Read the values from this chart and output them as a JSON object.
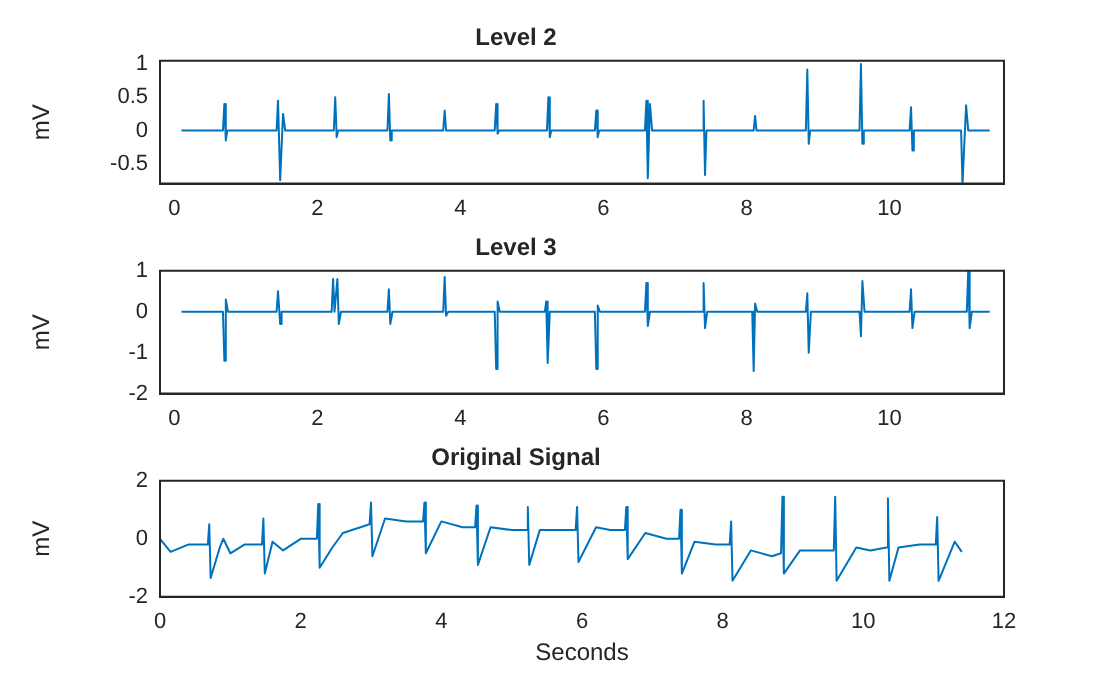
{
  "chart_data": [
    {
      "type": "line",
      "title": "Level 2",
      "ylabel": "mV",
      "xlim": [
        -0.2,
        11.6
      ],
      "xticks": [
        0,
        2,
        4,
        6,
        8,
        10
      ],
      "ylim": [
        -0.8,
        1.05
      ],
      "yticks": [
        -0.5,
        0,
        0.5,
        1
      ],
      "grid": false,
      "legend": false,
      "marker": "none",
      "line_style": "solid",
      "series": [
        {
          "color": "#0072bd",
          "x": [
            0.1,
            0.5,
            0.68,
            0.7,
            0.72,
            0.74,
            0.9,
            1.2,
            1.43,
            1.45,
            1.48,
            1.52,
            1.55,
            2.0,
            2.23,
            2.25,
            2.27,
            2.29,
            2.7,
            2.98,
            3.0,
            3.02,
            3.04,
            3.3,
            3.76,
            3.78,
            3.8,
            4.2,
            4.48,
            4.5,
            4.52,
            4.54,
            5.0,
            5.21,
            5.23,
            5.25,
            5.27,
            5.88,
            5.9,
            5.92,
            5.94,
            6.58,
            6.6,
            6.62,
            6.65,
            6.68,
            7.38,
            7.4,
            7.42,
            7.44,
            8.1,
            8.12,
            8.14,
            8.83,
            8.85,
            8.87,
            8.89,
            9.58,
            9.6,
            9.62,
            9.64,
            10.28,
            10.3,
            10.32,
            10.34,
            11.0,
            11.02,
            11.07,
            11.1,
            11.4
          ],
          "values": [
            0,
            0,
            0,
            0.4,
            -0.15,
            0,
            0,
            0,
            0,
            0.45,
            -0.75,
            0.25,
            0,
            0,
            0,
            0.5,
            -0.1,
            0,
            0,
            0,
            0.55,
            -0.15,
            0,
            0,
            0,
            0.3,
            0,
            0,
            0,
            0.4,
            -0.05,
            0,
            0,
            0,
            0.5,
            -0.1,
            0,
            0,
            0.3,
            -0.1,
            0,
            0,
            0.45,
            -0.72,
            0.4,
            0,
            0,
            0.45,
            -0.67,
            0,
            0,
            0.22,
            0,
            0,
            0.92,
            -0.2,
            0,
            0,
            1,
            -0.2,
            0,
            0,
            0.35,
            -0.3,
            0,
            0,
            -0.8,
            0.38,
            0,
            0
          ]
        }
      ]
    },
    {
      "type": "line",
      "title": "Level 3",
      "ylabel": "mV",
      "xlim": [
        -0.2,
        11.6
      ],
      "xticks": [
        0,
        2,
        4,
        6,
        8,
        10
      ],
      "ylim": [
        -2,
        1
      ],
      "yticks": [
        -2,
        -1,
        0,
        1
      ],
      "grid": false,
      "legend": false,
      "marker": "none",
      "line_style": "solid",
      "series": [
        {
          "color": "#0072bd",
          "x": [
            0.1,
            0.68,
            0.7,
            0.72,
            0.75,
            1.43,
            1.45,
            1.48,
            1.5,
            2.2,
            2.22,
            2.24,
            2.28,
            2.3,
            2.33,
            2.98,
            3.0,
            3.02,
            3.05,
            3.76,
            3.78,
            3.8,
            3.83,
            4.48,
            4.5,
            4.52,
            4.55,
            5.18,
            5.2,
            5.22,
            5.25,
            5.88,
            5.9,
            5.92,
            5.95,
            6.58,
            6.6,
            6.62,
            6.65,
            7.38,
            7.4,
            7.42,
            7.45,
            8.08,
            8.1,
            8.12,
            8.15,
            8.83,
            8.85,
            8.87,
            8.9,
            9.58,
            9.6,
            9.62,
            9.65,
            10.28,
            10.3,
            10.32,
            10.35,
            11.08,
            11.1,
            11.12,
            11.15,
            11.4
          ],
          "values": [
            0,
            0,
            -1.2,
            0.3,
            0,
            0,
            0.5,
            -0.3,
            0,
            0,
            0.8,
            0,
            0.8,
            -0.3,
            0,
            0,
            0.55,
            -0.3,
            0,
            0,
            0.85,
            -0.1,
            0,
            0,
            -1.4,
            0.25,
            0,
            0,
            0.25,
            -1.25,
            0,
            0,
            -1.4,
            0.15,
            0,
            0,
            0.7,
            -0.35,
            0,
            0,
            0.7,
            -0.4,
            0,
            0,
            -1.45,
            0.2,
            0,
            0,
            0.45,
            -1,
            0,
            0,
            -0.6,
            0.75,
            0,
            0,
            0.55,
            -0.4,
            0,
            0,
            1,
            -0.4,
            0,
            0
          ]
        }
      ]
    },
    {
      "type": "line",
      "title": "Original Signal",
      "xlabel": "Seconds",
      "ylabel": "mV",
      "xlim": [
        0,
        12
      ],
      "xticks": [
        0,
        2,
        4,
        6,
        8,
        10,
        12
      ],
      "ylim": [
        -2,
        2
      ],
      "yticks": [
        -2,
        0,
        2
      ],
      "grid": false,
      "legend": false,
      "marker": "none",
      "line_style": "solid",
      "series": [
        {
          "color": "#0072bd",
          "x": [
            0,
            0.15,
            0.4,
            0.68,
            0.7,
            0.72,
            0.85,
            0.9,
            1.0,
            1.2,
            1.45,
            1.47,
            1.49,
            1.6,
            1.75,
            2.0,
            2.23,
            2.25,
            2.27,
            2.45,
            2.6,
            2.98,
            3.0,
            3.02,
            3.2,
            3.5,
            3.74,
            3.76,
            3.78,
            4.0,
            4.3,
            4.48,
            4.5,
            4.52,
            4.7,
            5.0,
            5.21,
            5.23,
            5.25,
            5.4,
            5.6,
            5.91,
            5.93,
            5.95,
            6.2,
            6.4,
            6.61,
            6.63,
            6.65,
            6.9,
            7.2,
            7.38,
            7.4,
            7.42,
            7.6,
            7.9,
            8.1,
            8.12,
            8.14,
            8.4,
            8.7,
            8.83,
            8.85,
            8.87,
            9.1,
            9.4,
            9.58,
            9.6,
            9.62,
            9.9,
            10.1,
            10.33,
            10.35,
            10.37,
            10.5,
            10.8,
            11.03,
            11.05,
            11.07,
            11.3,
            11.4
          ],
          "values": [
            0,
            -0.45,
            -0.2,
            -0.2,
            0.5,
            -1.35,
            -0.3,
            0,
            -0.5,
            -0.2,
            -0.2,
            0.7,
            -1.2,
            -0.1,
            -0.4,
            0,
            0,
            1.2,
            -1,
            -0.3,
            0.2,
            0.5,
            1.25,
            -0.6,
            0.7,
            0.6,
            0.6,
            1.25,
            -0.5,
            0.6,
            0.4,
            0.4,
            1.15,
            -0.9,
            0.4,
            0.3,
            0.3,
            1.1,
            -0.9,
            0.3,
            0.3,
            0.3,
            1.1,
            -0.8,
            0.4,
            0.3,
            0.3,
            1.1,
            -0.7,
            0.2,
            0,
            0,
            1,
            -1.2,
            -0.1,
            -0.2,
            -0.2,
            0.6,
            -1.45,
            -0.4,
            -0.6,
            -0.5,
            1.45,
            -1.2,
            -0.4,
            -0.4,
            -0.4,
            1.45,
            -1.45,
            -0.3,
            -0.4,
            -0.3,
            1.4,
            -1.45,
            -0.3,
            -0.2,
            -0.2,
            0.75,
            -1.45,
            -0.1,
            -0.45
          ]
        }
      ]
    }
  ]
}
